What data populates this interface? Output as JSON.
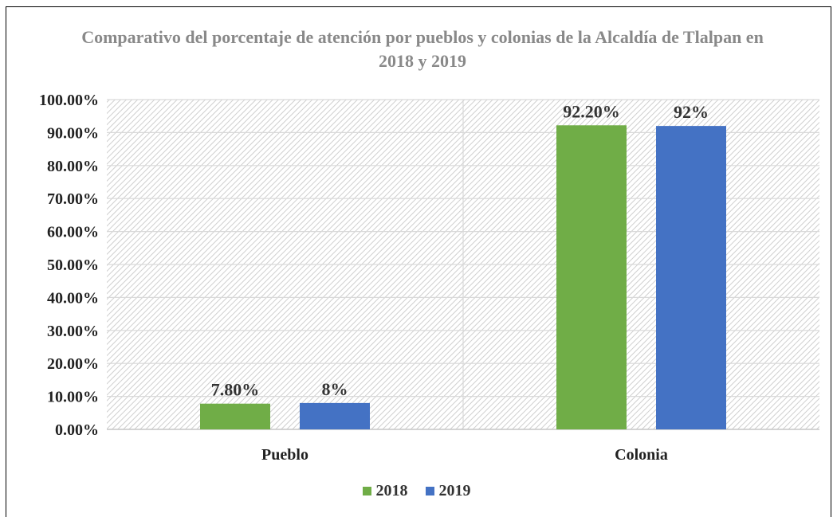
{
  "chart_data": {
    "type": "bar",
    "title": "Comparativo del porcentaje de atención por pueblos y colonias de la Alcaldía de Tlalpan en 2018 y 2019",
    "categories": [
      "Pueblo",
      "Colonia"
    ],
    "series": [
      {
        "name": "2018",
        "values": [
          7.8,
          92.2
        ],
        "labels": [
          "7.80%",
          "92.20%"
        ],
        "color": "#70AD47"
      },
      {
        "name": "2019",
        "values": [
          8,
          92
        ],
        "labels": [
          "8%",
          "92%"
        ],
        "color": "#4472C4"
      }
    ],
    "ylim": [
      0,
      100
    ],
    "yticks": [
      0,
      10,
      20,
      30,
      40,
      50,
      60,
      70,
      80,
      90,
      100
    ],
    "ytick_labels": [
      "0.00%",
      "10.00%",
      "20.00%",
      "30.00%",
      "40.00%",
      "50.00%",
      "60.00%",
      "70.00%",
      "80.00%",
      "90.00%",
      "100.00%"
    ],
    "grid": true,
    "legend": "bottom-center"
  }
}
